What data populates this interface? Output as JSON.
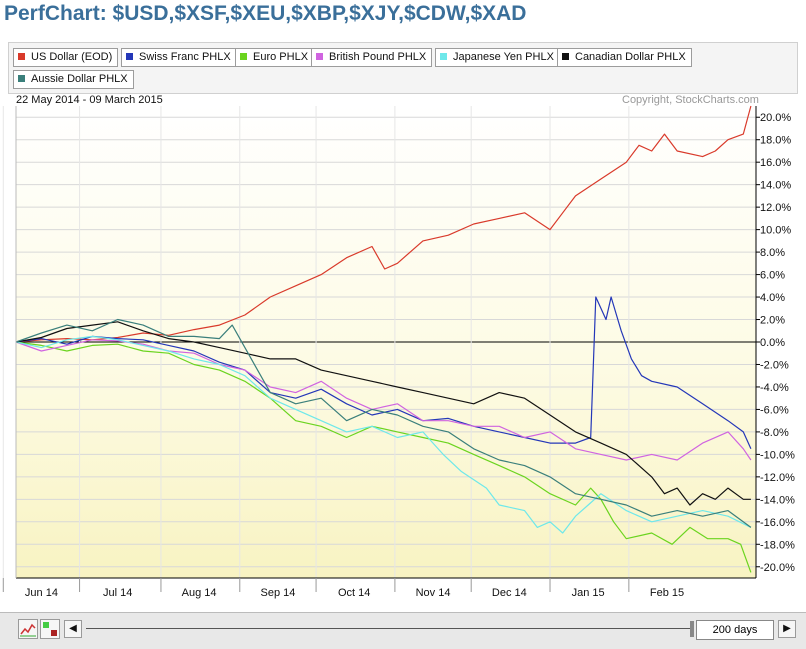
{
  "title": "PerfChart: $USD,$XSF,$XEU,$XBP,$XJY,$CDW,$XAD",
  "date_range": "22 May 2014 - 09 March 2015",
  "copyright": "Copyright, StockCharts.com",
  "legend": [
    {
      "label": "US Dollar (EOD)",
      "color": "#d93a2b"
    },
    {
      "label": "Swiss Franc PHLX",
      "color": "#2437b8"
    },
    {
      "label": "Euro PHLX",
      "color": "#6bd41f"
    },
    {
      "label": "British Pound PHLX",
      "color": "#d064e0"
    },
    {
      "label": "Japanese Yen PHLX",
      "color": "#6ee8ea"
    },
    {
      "label": "Canadian Dollar PHLX",
      "color": "#111111"
    },
    {
      "label": "Aussie Dollar PHLX",
      "color": "#3a7f7b"
    }
  ],
  "controls": {
    "days": "200 days",
    "prev": "◀",
    "next": "▶"
  },
  "chart_data": {
    "type": "line",
    "title": "PerfChart: $USD,$XSF,$XEU,$XBP,$XJY,$CDW,$XAD",
    "xlabel": "",
    "ylabel": "",
    "y_unit": "%",
    "ylim": [
      -21,
      21
    ],
    "y_ticks": [
      20,
      18,
      16,
      14,
      12,
      10,
      8,
      6,
      4,
      2,
      0,
      -2,
      -4,
      -6,
      -8,
      -10,
      -12,
      -14,
      -16,
      -18,
      -20
    ],
    "y_tick_labels": [
      "20.0%",
      "18.0%",
      "16.0%",
      "14.0%",
      "12.0%",
      "10.0%",
      "8.0%",
      "6.0%",
      "4.0%",
      "2.0%",
      "0.0%",
      "-2.0%",
      "-4.0%",
      "-6.0%",
      "-8.0%",
      "-10.0%",
      "-12.0%",
      "-14.0%",
      "-16.0%",
      "-18.0%",
      "-20.0%"
    ],
    "x_labels": [
      "Jun 14",
      "Jul 14",
      "Aug 14",
      "Sep 14",
      "Oct 14",
      "Nov 14",
      "Dec 14",
      "Jan 15",
      "Feb 15"
    ],
    "x_label_days": [
      10,
      40,
      72,
      103,
      133,
      164,
      194,
      225,
      256
    ],
    "x_range": [
      0,
      291
    ],
    "grid": true,
    "legend_position": "top",
    "series": [
      {
        "name": "US Dollar (EOD)",
        "color": "#d93a2b",
        "points": [
          [
            0,
            0
          ],
          [
            10,
            0.2
          ],
          [
            20,
            0.3
          ],
          [
            30,
            0.2
          ],
          [
            40,
            0.4
          ],
          [
            50,
            0.8
          ],
          [
            60,
            0.6
          ],
          [
            70,
            1.1
          ],
          [
            80,
            1.5
          ],
          [
            90,
            2.4
          ],
          [
            100,
            4.0
          ],
          [
            110,
            5.0
          ],
          [
            120,
            6.0
          ],
          [
            130,
            7.5
          ],
          [
            140,
            8.5
          ],
          [
            145,
            6.5
          ],
          [
            150,
            7.0
          ],
          [
            160,
            9.0
          ],
          [
            170,
            9.5
          ],
          [
            180,
            10.5
          ],
          [
            190,
            11.0
          ],
          [
            200,
            11.5
          ],
          [
            210,
            10.0
          ],
          [
            215,
            11.5
          ],
          [
            220,
            13.0
          ],
          [
            230,
            14.5
          ],
          [
            240,
            16.0
          ],
          [
            245,
            17.5
          ],
          [
            250,
            17.0
          ],
          [
            255,
            18.5
          ],
          [
            260,
            17.0
          ],
          [
            270,
            16.5
          ],
          [
            275,
            17.0
          ],
          [
            280,
            18.0
          ],
          [
            286,
            18.5
          ],
          [
            289,
            21.0
          ]
        ]
      },
      {
        "name": "Swiss Franc PHLX",
        "color": "#2437b8",
        "points": [
          [
            0,
            0
          ],
          [
            10,
            0.3
          ],
          [
            20,
            -0.2
          ],
          [
            30,
            0.5
          ],
          [
            40,
            0.3
          ],
          [
            50,
            0.2
          ],
          [
            60,
            -0.3
          ],
          [
            70,
            -0.8
          ],
          [
            80,
            -1.8
          ],
          [
            90,
            -2.5
          ],
          [
            100,
            -4.5
          ],
          [
            110,
            -5.0
          ],
          [
            120,
            -4.2
          ],
          [
            130,
            -5.5
          ],
          [
            140,
            -6.5
          ],
          [
            150,
            -6.0
          ],
          [
            160,
            -7.0
          ],
          [
            170,
            -6.8
          ],
          [
            180,
            -7.5
          ],
          [
            190,
            -8.0
          ],
          [
            200,
            -8.5
          ],
          [
            210,
            -9.0
          ],
          [
            220,
            -9.0
          ],
          [
            226,
            -8.5
          ],
          [
            228,
            4.0
          ],
          [
            232,
            2.0
          ],
          [
            234,
            4.0
          ],
          [
            238,
            1.0
          ],
          [
            242,
            -1.5
          ],
          [
            246,
            -3.0
          ],
          [
            250,
            -3.5
          ],
          [
            260,
            -4.0
          ],
          [
            270,
            -5.5
          ],
          [
            280,
            -7.0
          ],
          [
            286,
            -8.0
          ],
          [
            289,
            -9.5
          ]
        ]
      },
      {
        "name": "Euro PHLX",
        "color": "#6bd41f",
        "points": [
          [
            0,
            0
          ],
          [
            10,
            -0.3
          ],
          [
            20,
            -0.8
          ],
          [
            30,
            -0.3
          ],
          [
            40,
            -0.2
          ],
          [
            50,
            -0.8
          ],
          [
            60,
            -1.0
          ],
          [
            70,
            -2.0
          ],
          [
            80,
            -2.5
          ],
          [
            90,
            -3.5
          ],
          [
            100,
            -5.0
          ],
          [
            110,
            -7.0
          ],
          [
            120,
            -7.5
          ],
          [
            130,
            -8.5
          ],
          [
            140,
            -7.5
          ],
          [
            150,
            -8.0
          ],
          [
            160,
            -8.5
          ],
          [
            170,
            -9.0
          ],
          [
            180,
            -10.0
          ],
          [
            190,
            -11.0
          ],
          [
            200,
            -12.0
          ],
          [
            210,
            -13.5
          ],
          [
            220,
            -14.5
          ],
          [
            226,
            -13.0
          ],
          [
            230,
            -14.0
          ],
          [
            235,
            -16.0
          ],
          [
            240,
            -17.5
          ],
          [
            250,
            -17.0
          ],
          [
            258,
            -18.0
          ],
          [
            265,
            -16.5
          ],
          [
            272,
            -17.5
          ],
          [
            280,
            -17.5
          ],
          [
            285,
            -18.0
          ],
          [
            289,
            -20.5
          ]
        ]
      },
      {
        "name": "British Pound PHLX",
        "color": "#d064e0",
        "points": [
          [
            0,
            0
          ],
          [
            10,
            -0.8
          ],
          [
            20,
            -0.3
          ],
          [
            30,
            0.2
          ],
          [
            40,
            0.1
          ],
          [
            50,
            -0.2
          ],
          [
            60,
            -0.8
          ],
          [
            70,
            -1.0
          ],
          [
            80,
            -2.0
          ],
          [
            90,
            -2.5
          ],
          [
            100,
            -4.0
          ],
          [
            110,
            -4.5
          ],
          [
            120,
            -3.5
          ],
          [
            130,
            -5.0
          ],
          [
            140,
            -6.0
          ],
          [
            150,
            -5.5
          ],
          [
            160,
            -7.0
          ],
          [
            170,
            -7.0
          ],
          [
            180,
            -7.5
          ],
          [
            190,
            -7.5
          ],
          [
            200,
            -8.5
          ],
          [
            210,
            -8.0
          ],
          [
            220,
            -9.5
          ],
          [
            230,
            -10.0
          ],
          [
            240,
            -10.5
          ],
          [
            250,
            -10.0
          ],
          [
            260,
            -10.5
          ],
          [
            270,
            -9.0
          ],
          [
            280,
            -8.0
          ],
          [
            286,
            -9.5
          ],
          [
            289,
            -10.5
          ]
        ]
      },
      {
        "name": "Japanese Yen PHLX",
        "color": "#6ee8ea",
        "points": [
          [
            0,
            0
          ],
          [
            10,
            -0.5
          ],
          [
            20,
            0.2
          ],
          [
            30,
            0.5
          ],
          [
            40,
            0.2
          ],
          [
            50,
            -0.3
          ],
          [
            60,
            -0.8
          ],
          [
            70,
            -1.5
          ],
          [
            80,
            -2.0
          ],
          [
            90,
            -3.0
          ],
          [
            100,
            -5.0
          ],
          [
            110,
            -6.0
          ],
          [
            120,
            -7.0
          ],
          [
            130,
            -8.0
          ],
          [
            140,
            -7.5
          ],
          [
            150,
            -8.5
          ],
          [
            160,
            -8.0
          ],
          [
            164,
            -9.0
          ],
          [
            168,
            -10.0
          ],
          [
            175,
            -11.5
          ],
          [
            185,
            -13.0
          ],
          [
            190,
            -14.5
          ],
          [
            200,
            -15.0
          ],
          [
            205,
            -16.5
          ],
          [
            210,
            -16.0
          ],
          [
            215,
            -17.0
          ],
          [
            220,
            -15.5
          ],
          [
            225,
            -14.5
          ],
          [
            230,
            -13.5
          ],
          [
            240,
            -15.0
          ],
          [
            250,
            -16.0
          ],
          [
            260,
            -15.5
          ],
          [
            270,
            -15.0
          ],
          [
            280,
            -15.5
          ],
          [
            289,
            -16.5
          ]
        ]
      },
      {
        "name": "Canadian Dollar PHLX",
        "color": "#111111",
        "points": [
          [
            0,
            0
          ],
          [
            10,
            0.4
          ],
          [
            20,
            1.2
          ],
          [
            30,
            1.5
          ],
          [
            40,
            1.8
          ],
          [
            50,
            1.0
          ],
          [
            60,
            0.3
          ],
          [
            70,
            0.0
          ],
          [
            80,
            -0.5
          ],
          [
            90,
            -1.0
          ],
          [
            100,
            -1.5
          ],
          [
            110,
            -1.5
          ],
          [
            120,
            -2.5
          ],
          [
            130,
            -3.0
          ],
          [
            140,
            -3.5
          ],
          [
            150,
            -4.0
          ],
          [
            160,
            -4.5
          ],
          [
            170,
            -5.0
          ],
          [
            180,
            -5.5
          ],
          [
            190,
            -4.5
          ],
          [
            200,
            -5.0
          ],
          [
            210,
            -6.5
          ],
          [
            220,
            -8.0
          ],
          [
            230,
            -9.0
          ],
          [
            240,
            -10.0
          ],
          [
            250,
            -12.0
          ],
          [
            255,
            -13.5
          ],
          [
            260,
            -13.0
          ],
          [
            265,
            -14.5
          ],
          [
            270,
            -13.5
          ],
          [
            275,
            -14.0
          ],
          [
            280,
            -13.0
          ],
          [
            286,
            -14.0
          ],
          [
            289,
            -14.0
          ]
        ]
      },
      {
        "name": "Aussie Dollar PHLX",
        "color": "#3a7f7b",
        "points": [
          [
            0,
            0
          ],
          [
            10,
            0.8
          ],
          [
            20,
            1.5
          ],
          [
            30,
            1.0
          ],
          [
            40,
            2.0
          ],
          [
            50,
            1.5
          ],
          [
            60,
            0.5
          ],
          [
            70,
            0.5
          ],
          [
            80,
            0.3
          ],
          [
            85,
            1.5
          ],
          [
            90,
            -0.5
          ],
          [
            100,
            -4.5
          ],
          [
            110,
            -5.5
          ],
          [
            120,
            -5.0
          ],
          [
            130,
            -7.0
          ],
          [
            140,
            -6.0
          ],
          [
            150,
            -6.5
          ],
          [
            160,
            -7.5
          ],
          [
            170,
            -8.0
          ],
          [
            180,
            -9.5
          ],
          [
            190,
            -10.5
          ],
          [
            200,
            -11.0
          ],
          [
            210,
            -12.0
          ],
          [
            220,
            -13.5
          ],
          [
            230,
            -14.0
          ],
          [
            240,
            -14.5
          ],
          [
            250,
            -15.5
          ],
          [
            260,
            -15.0
          ],
          [
            270,
            -15.5
          ],
          [
            280,
            -15.0
          ],
          [
            289,
            -16.5
          ]
        ]
      }
    ]
  }
}
